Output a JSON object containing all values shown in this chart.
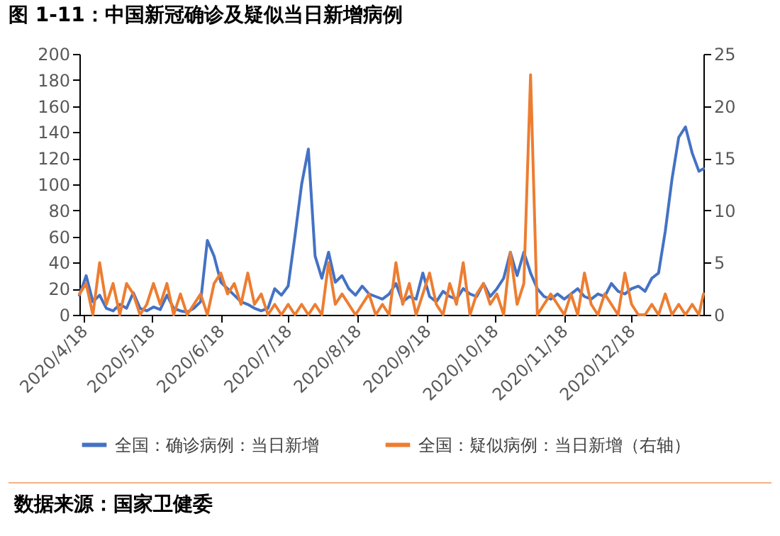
{
  "chart_data": {
    "type": "line",
    "title": "图 1-11：中国新冠确诊及疑似当日新增病例",
    "x": [
      "2020-04-16",
      "2020-04-19",
      "2020-04-22",
      "2020-04-25",
      "2020-04-28",
      "2020-05-01",
      "2020-05-04",
      "2020-05-07",
      "2020-05-10",
      "2020-05-13",
      "2020-05-16",
      "2020-05-19",
      "2020-05-22",
      "2020-05-25",
      "2020-05-28",
      "2020-05-31",
      "2020-06-03",
      "2020-06-06",
      "2020-06-09",
      "2020-06-12",
      "2020-06-15",
      "2020-06-18",
      "2020-06-21",
      "2020-06-24",
      "2020-06-27",
      "2020-06-30",
      "2020-07-03",
      "2020-07-06",
      "2020-07-09",
      "2020-07-12",
      "2020-07-15",
      "2020-07-18",
      "2020-07-21",
      "2020-07-24",
      "2020-07-27",
      "2020-07-30",
      "2020-08-02",
      "2020-08-05",
      "2020-08-08",
      "2020-08-11",
      "2020-08-14",
      "2020-08-17",
      "2020-08-20",
      "2020-08-23",
      "2020-08-26",
      "2020-08-29",
      "2020-09-01",
      "2020-09-04",
      "2020-09-07",
      "2020-09-10",
      "2020-09-13",
      "2020-09-16",
      "2020-09-19",
      "2020-09-22",
      "2020-09-25",
      "2020-09-28",
      "2020-10-01",
      "2020-10-04",
      "2020-10-07",
      "2020-10-10",
      "2020-10-13",
      "2020-10-16",
      "2020-10-19",
      "2020-10-22",
      "2020-10-25",
      "2020-10-28",
      "2020-10-31",
      "2020-11-03",
      "2020-11-06",
      "2020-11-09",
      "2020-11-12",
      "2020-11-15",
      "2020-11-18",
      "2020-11-21",
      "2020-11-24",
      "2020-11-27",
      "2020-11-30",
      "2020-12-03",
      "2020-12-06",
      "2020-12-09",
      "2020-12-12",
      "2020-12-15",
      "2020-12-18",
      "2020-12-21",
      "2020-12-24",
      "2020-12-27",
      "2020-12-30",
      "2021-01-02",
      "2021-01-05",
      "2021-01-08",
      "2021-01-11",
      "2021-01-14",
      "2021-01-17",
      "2021-01-19"
    ],
    "series": [
      {
        "name": "全国：确诊病例：当日新增",
        "color": "#4472c4",
        "values": [
          15,
          30,
          10,
          15,
          5,
          3,
          8,
          5,
          17,
          5,
          3,
          6,
          4,
          15,
          5,
          3,
          2,
          5,
          10,
          57,
          45,
          25,
          20,
          15,
          10,
          8,
          5,
          3,
          5,
          20,
          15,
          22,
          60,
          100,
          127,
          45,
          28,
          48,
          25,
          30,
          20,
          15,
          22,
          16,
          14,
          12,
          16,
          24,
          10,
          14,
          12,
          32,
          14,
          10,
          18,
          14,
          12,
          20,
          16,
          14,
          24,
          14,
          20,
          28,
          48,
          30,
          48,
          32,
          20,
          14,
          12,
          16,
          12,
          16,
          20,
          14,
          12,
          16,
          14,
          24,
          18,
          16,
          20,
          22,
          18,
          28,
          32,
          64,
          104,
          136,
          144,
          124,
          110,
          112
        ]
      },
      {
        "name": "全国：疑似病例：当日新增（右轴）",
        "color": "#ed7d31",
        "axis": "y2",
        "values": [
          2,
          3,
          0,
          5,
          1,
          3,
          0,
          3,
          2,
          0,
          1,
          3,
          1,
          3,
          0,
          2,
          0,
          1,
          2,
          0,
          3,
          4,
          2,
          3,
          1,
          4,
          1,
          2,
          0,
          1,
          0,
          1,
          0,
          1,
          0,
          1,
          0,
          5,
          1,
          2,
          1,
          0,
          1,
          2,
          0,
          1,
          0,
          5,
          1,
          3,
          0,
          2,
          4,
          1,
          0,
          3,
          1,
          5,
          0,
          2,
          3,
          1,
          2,
          0,
          6,
          1,
          3,
          23,
          0,
          1,
          2,
          1,
          0,
          2,
          0,
          4,
          1,
          0,
          2,
          1,
          0,
          4,
          1,
          0,
          0,
          1,
          0,
          2,
          0,
          1,
          0,
          1,
          0,
          2
        ]
      }
    ],
    "xlim": [
      "2020-04-16",
      "2021-01-19"
    ],
    "xticks": [
      {
        "value": "2020-04-18",
        "label": "2020/4/18"
      },
      {
        "value": "2020-05-18",
        "label": "2020/5/18"
      },
      {
        "value": "2020-06-18",
        "label": "2020/6/18"
      },
      {
        "value": "2020-07-18",
        "label": "2020/7/18"
      },
      {
        "value": "2020-08-18",
        "label": "2020/8/18"
      },
      {
        "value": "2020-09-18",
        "label": "2020/9/18"
      },
      {
        "value": "2020-10-18",
        "label": "2020/10/18"
      },
      {
        "value": "2020-11-18",
        "label": "2020/11/18"
      },
      {
        "value": "2020-12-18",
        "label": "2020/12/18"
      }
    ],
    "ylim": [
      0,
      200
    ],
    "yticks": [
      0,
      20,
      40,
      60,
      80,
      100,
      120,
      140,
      160,
      180,
      200
    ],
    "y2lim": [
      0,
      25
    ],
    "y2ticks": [
      0,
      5,
      10,
      15,
      20,
      25
    ],
    "grid": false,
    "legend": "bottom",
    "marker": "none",
    "line_style": "solid",
    "annotations": [
      "数据来源：国家卫健委"
    ]
  }
}
